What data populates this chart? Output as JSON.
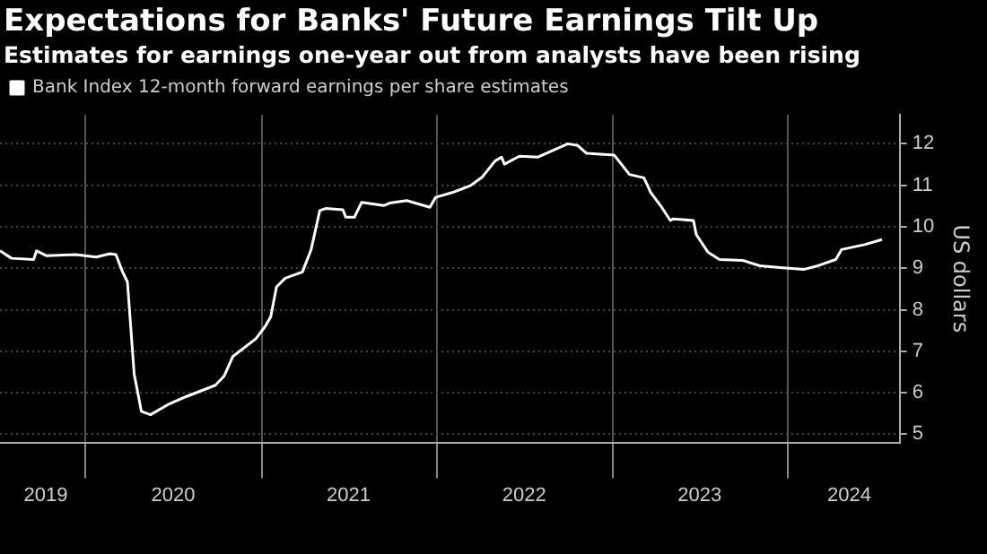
{
  "chart_data": {
    "type": "line",
    "title": "Expectations for Banks' Future Earnings Tilt Up",
    "subtitle": "Estimates for earnings one-year out from analysts have been rising",
    "ylabel": "US dollars",
    "x": [
      "2019-07-07",
      "2019-07-31",
      "2019-09-15",
      "2019-09-21",
      "2019-10-12",
      "2019-12-11",
      "2020-01-23",
      "2020-02-21",
      "2020-03-04",
      "2020-03-18",
      "2020-03-28",
      "2020-04-05",
      "2020-04-11",
      "2020-04-26",
      "2020-05-15",
      "2020-06-23",
      "2020-07-29",
      "2020-09-27",
      "2020-10-15",
      "2020-11-02",
      "2020-12-20",
      "2021-01-08",
      "2021-01-20",
      "2021-02-01",
      "2021-02-19",
      "2021-03-27",
      "2021-04-14",
      "2021-05-02",
      "2021-05-14",
      "2021-06-19",
      "2021-06-25",
      "2021-07-13",
      "2021-07-28",
      "2021-09-12",
      "2021-09-24",
      "2021-10-30",
      "2021-12-17",
      "2021-12-29",
      "2022-02-03",
      "2022-03-11",
      "2022-04-05",
      "2022-05-01",
      "2022-05-15",
      "2022-05-21",
      "2022-06-21",
      "2022-07-30",
      "2022-09-30",
      "2022-10-20",
      "2022-11-08",
      "2023-01-04",
      "2023-02-05",
      "2023-03-07",
      "2023-03-14",
      "2023-03-21",
      "2023-04-13",
      "2023-05-01",
      "2023-05-07",
      "2023-06-18",
      "2023-06-24",
      "2023-07-18",
      "2023-08-11",
      "2023-09-28",
      "2023-11-03",
      "2023-12-21",
      "2024-02-02",
      "2024-03-03",
      "2024-04-09",
      "2024-04-21",
      "2024-06-08",
      "2024-07-14"
    ],
    "series": [
      {
        "name": "Bank Index 12-month forward earnings per share estimates",
        "color": "#ffffff",
        "values": [
          9.42,
          9.24,
          9.21,
          9.42,
          9.3,
          9.33,
          9.27,
          9.35,
          9.33,
          8.91,
          8.67,
          7.41,
          6.45,
          5.55,
          5.47,
          5.73,
          5.91,
          6.18,
          6.4,
          6.87,
          7.3,
          7.59,
          7.83,
          8.55,
          8.76,
          8.91,
          9.45,
          10.39,
          10.44,
          10.41,
          10.23,
          10.23,
          10.59,
          10.51,
          10.57,
          10.63,
          10.47,
          10.71,
          10.83,
          10.99,
          11.2,
          11.58,
          11.68,
          11.51,
          11.7,
          11.68,
          12.0,
          11.96,
          11.77,
          11.73,
          11.26,
          11.18,
          11.01,
          10.83,
          10.47,
          10.15,
          10.19,
          10.15,
          9.81,
          9.39,
          9.21,
          9.19,
          9.06,
          9.01,
          8.97,
          9.06,
          9.21,
          9.45,
          9.57,
          9.69
        ]
      }
    ],
    "xlim": [
      "2019-07-07",
      "2024-08-20"
    ],
    "xticks": [
      {
        "value": "2019-10-10",
        "label": "2019"
      },
      {
        "value": "2020-01-01",
        "label": null
      },
      {
        "value": "2020-07-01",
        "label": "2020"
      },
      {
        "value": "2021-01-01",
        "label": null
      },
      {
        "value": "2021-07-01",
        "label": "2021"
      },
      {
        "value": "2022-01-01",
        "label": null
      },
      {
        "value": "2022-07-01",
        "label": "2022"
      },
      {
        "value": "2023-01-01",
        "label": null
      },
      {
        "value": "2023-07-01",
        "label": "2023"
      },
      {
        "value": "2024-01-01",
        "label": null
      },
      {
        "value": "2024-05-07",
        "label": "2024"
      }
    ],
    "ylim": [
      4.8,
      12.7
    ],
    "yticks": [
      5,
      6,
      7,
      8,
      9,
      10,
      11,
      12
    ],
    "grid": true,
    "legend": "top left",
    "marker": "none",
    "line_style": "solid"
  }
}
